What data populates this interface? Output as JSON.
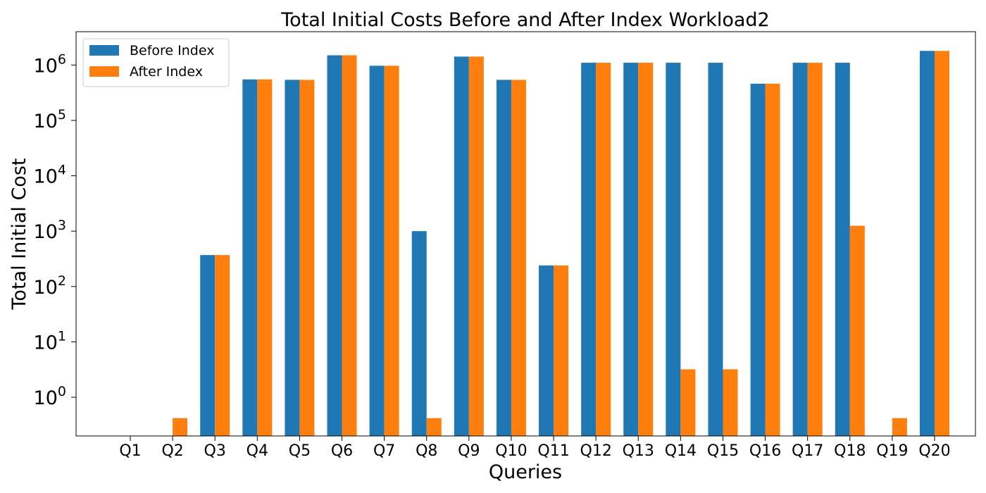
{
  "chart_data": {
    "type": "bar",
    "title": "Total Initial Costs Before and After Index Workload2",
    "xlabel": "Queries",
    "ylabel": "Total Initial Cost",
    "yscale": "log",
    "ylim": [
      0.2,
      4000000
    ],
    "yticks": [
      {
        "value": 1,
        "base": "10",
        "exp": "0"
      },
      {
        "value": 10,
        "base": "10",
        "exp": "1"
      },
      {
        "value": 100,
        "base": "10",
        "exp": "2"
      },
      {
        "value": 1000,
        "base": "10",
        "exp": "3"
      },
      {
        "value": 10000,
        "base": "10",
        "exp": "4"
      },
      {
        "value": 100000,
        "base": "10",
        "exp": "5"
      },
      {
        "value": 1000000,
        "base": "10",
        "exp": "6"
      }
    ],
    "grid": false,
    "legend_position": "top-left",
    "categories": [
      "Q1",
      "Q2",
      "Q3",
      "Q4",
      "Q5",
      "Q6",
      "Q7",
      "Q8",
      "Q9",
      "Q10",
      "Q11",
      "Q12",
      "Q13",
      "Q14",
      "Q15",
      "Q16",
      "Q17",
      "Q18",
      "Q19",
      "Q20"
    ],
    "series": [
      {
        "name": "Before Index",
        "color": "#1f77b4",
        "values": [
          0,
          0,
          370,
          550000,
          540000,
          1500000,
          970000,
          1000,
          1420000,
          540000,
          240,
          1100000,
          1100000,
          1100000,
          1100000,
          460000,
          1100000,
          1100000,
          0,
          1800000
        ]
      },
      {
        "name": "After Index",
        "color": "#ff7f0e",
        "values": [
          0,
          0.42,
          370,
          550000,
          540000,
          1500000,
          970000,
          0.42,
          1420000,
          540000,
          240,
          1100000,
          1100000,
          3.2,
          3.2,
          460000,
          1100000,
          1250,
          0.42,
          1800000
        ]
      }
    ]
  }
}
